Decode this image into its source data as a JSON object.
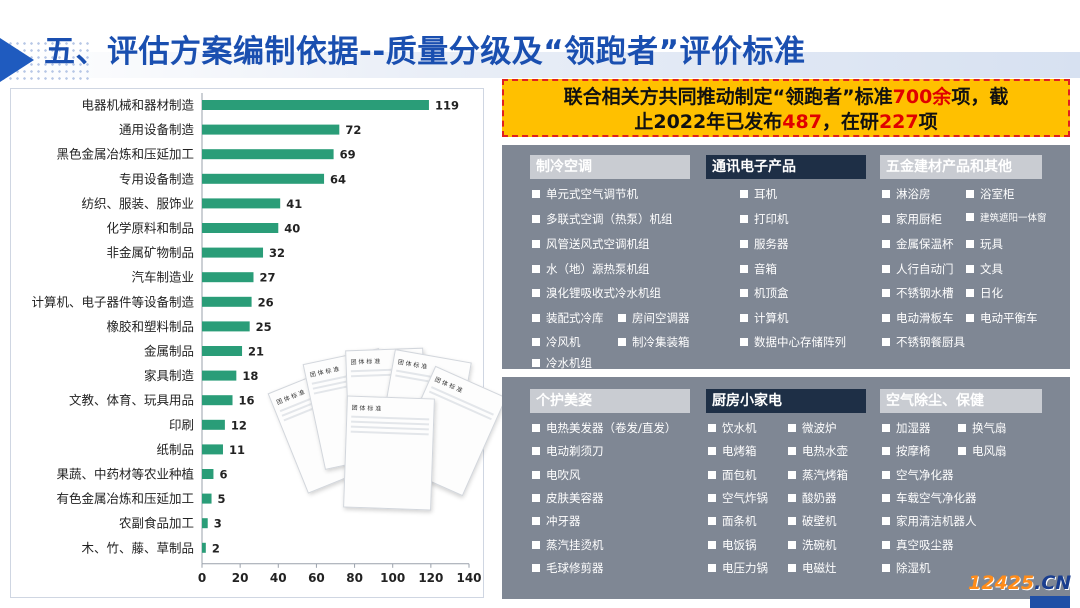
{
  "header": {
    "title": "五、评估方案编制依据--质量分级及“领跑者”评价标准"
  },
  "chart_data": {
    "type": "bar",
    "orientation": "horizontal",
    "categories": [
      "电器机械和器材制造",
      "通用设备制造",
      "黑色金属冶炼和压延加工",
      "专用设备制造",
      "纺织、服装、服饰业",
      "化学原料和制品",
      "非金属矿物制品",
      "汽车制造业",
      "计算机、电子器件等设备制造",
      "橡胶和塑料制品",
      "金属制品",
      "家具制造",
      "文教、体育、玩具用品",
      "印刷",
      "纸制品",
      "果蔬、中药材等农业种植",
      "有色金属冶炼和压延加工",
      "农副食品加工",
      "木、竹、藤、草制品"
    ],
    "values": [
      119,
      72,
      69,
      64,
      41,
      40,
      32,
      27,
      26,
      25,
      21,
      18,
      16,
      12,
      11,
      6,
      5,
      3,
      2
    ],
    "xlim": [
      0,
      140
    ],
    "xticks": [
      0,
      20,
      40,
      60,
      80,
      100,
      120,
      140
    ],
    "bar_color": "#2a9d78",
    "grid": false
  },
  "papers": {
    "labels": [
      "团 体 标 准",
      "团 体 标 准",
      "团 体 标 准",
      "团 体 标 准",
      "团 体 标 准",
      "团 体 标 准"
    ]
  },
  "banner": {
    "line1_pre": "联合相关方共同推动制定“领跑者”标准",
    "line1_num": "700余",
    "line1_post": "项，截",
    "line2_pre": "止2022年已发布",
    "line2_num1": "487",
    "line2_mid": "，在研",
    "line2_num2": "227",
    "line2_post": "项"
  },
  "categories_top": {
    "col1": {
      "title": "制冷空调",
      "items": [
        "单元式空气调节机",
        "多联式空调（热泵）机组",
        "风管送风式空调机组",
        "水（地）源热泵机组",
        "溴化锂吸收式冷水机组",
        "装配式冷库",
        "冷风机",
        "冷水机组"
      ],
      "extra": [
        "房间空调器",
        "制冷集装箱"
      ]
    },
    "col2": {
      "title": "通讯电子产品",
      "items": [
        "耳机",
        "打印机",
        "服务器",
        "音箱",
        "机顶盒",
        "计算机",
        "数据中心存储阵列"
      ]
    },
    "col3": {
      "title": "五金建材产品和其他",
      "items_a": [
        "淋浴房",
        "家用厨柜",
        "金属保温杯",
        "人行自动门",
        "不锈钢水槽",
        "电动滑板车",
        "不锈钢餐厨具"
      ],
      "items_b": [
        "浴室柜",
        "建筑遮阳一体窗",
        "玩具",
        "文具",
        "日化",
        "电动平衡车"
      ]
    }
  },
  "categories_bottom": {
    "col1": {
      "title": "个护美姿",
      "items": [
        "电热美发器（卷发/直发）",
        "电动剃须刀",
        "电吹风",
        "皮肤美容器",
        "冲牙器",
        "蒸汽挂烫机",
        "毛球修剪器"
      ]
    },
    "col2": {
      "title": "厨房小家电",
      "items_a": [
        "饮水机",
        "电烤箱",
        "面包机",
        "空气炸锅",
        "面条机",
        "电饭锅",
        "电压力锅"
      ],
      "items_b": [
        "微波炉",
        "电热水壶",
        "蒸汽烤箱",
        "酸奶器",
        "破壁机",
        "洗碗机",
        "电磁灶"
      ]
    },
    "col3": {
      "title": "空气除尘、保健",
      "items_a": [
        "加湿器",
        "按摩椅",
        "空气净化器",
        "车载空气净化器",
        "家用清洁机器人",
        "真空吸尘器",
        "除湿机"
      ],
      "items_b": [
        "换气扇",
        "电风扇"
      ]
    }
  },
  "watermark": {
    "num": "12425",
    "dot_cn": ".CN"
  },
  "colors": {
    "title": "#1a4fb0",
    "banner_bg": "#ffc000",
    "banner_num": "#e00000",
    "panel_bg": "#7f8794",
    "head_dark": "#1e2f46",
    "head_light": "#c9ccd2"
  }
}
